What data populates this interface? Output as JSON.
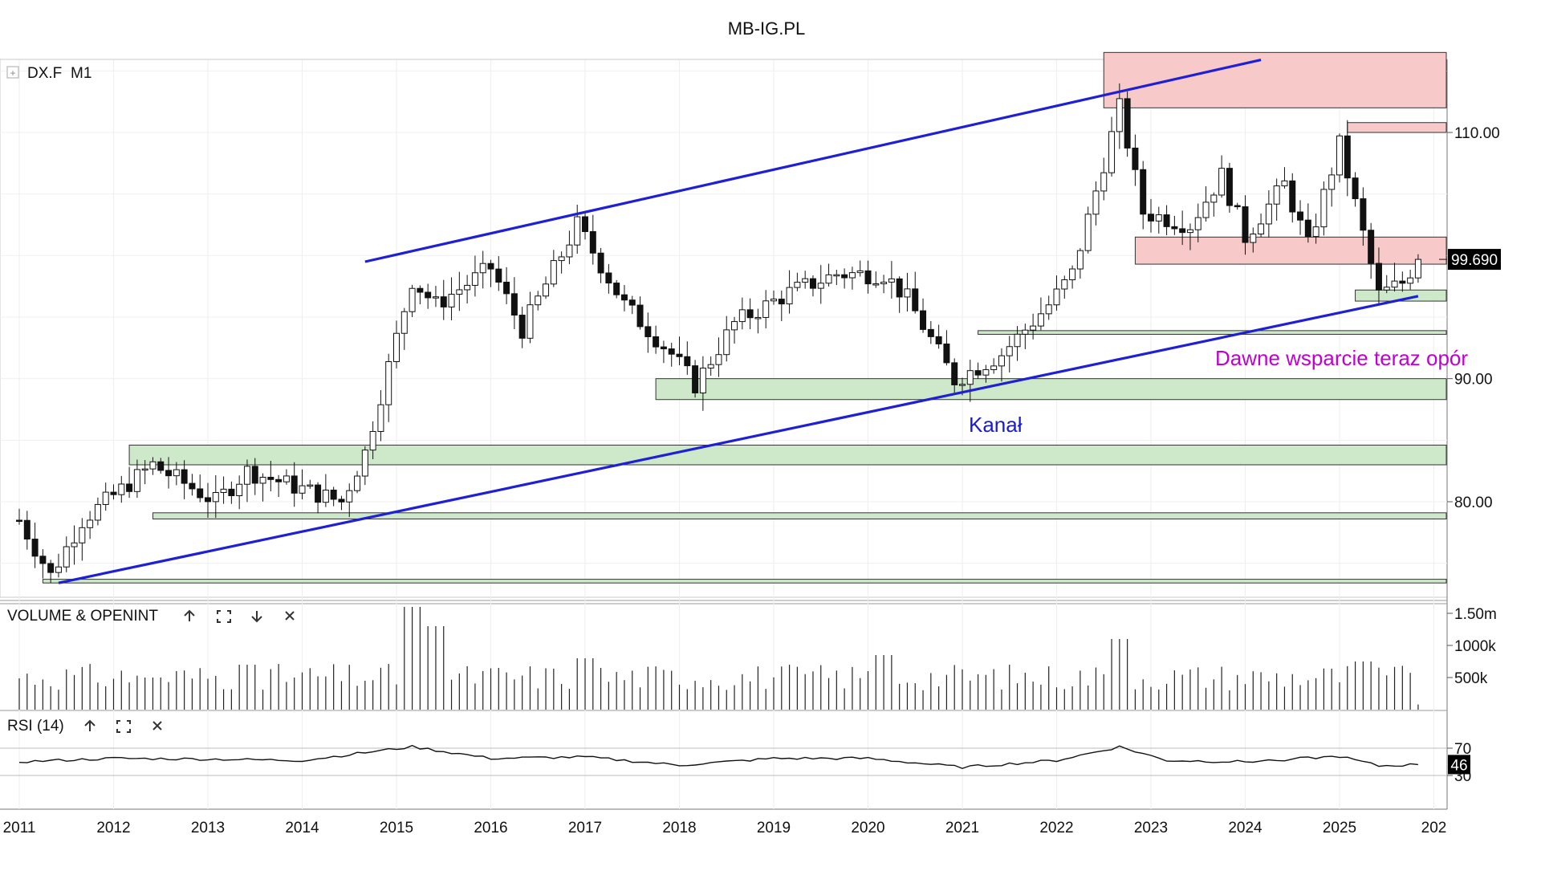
{
  "header": {
    "title": "MB-IG.PL"
  },
  "symbol": {
    "label": "DX.F",
    "timeframe": "M1",
    "expand_glyph": "+"
  },
  "price_axis": {
    "ticks": [
      80,
      90,
      110
    ],
    "tick_labels": [
      "80.00",
      "90.00",
      "110.00"
    ],
    "ylim": [
      73.2,
      119.5
    ]
  },
  "last_price": {
    "value": 99.69,
    "label": "99.690"
  },
  "annotations": {
    "channel_label": "Kanał",
    "old_support_label": "Dawne wsparcie teraz opór"
  },
  "colors": {
    "channel": "#1f1fd6",
    "resistance_fill": "#f7c9c9",
    "support_fill": "#cde9c9",
    "annotation_magenta": "#c000d0",
    "annotation_blue": "#1a1ad0"
  },
  "volume_panel": {
    "title": "VOLUME & OPENINT",
    "tick_labels": [
      "1.50m",
      "1000k",
      "500k"
    ],
    "tick_values": [
      1500000,
      1000000,
      500000
    ],
    "icons": [
      "arrow-up-icon",
      "maximize-icon",
      "arrow-down-icon",
      "close-icon"
    ]
  },
  "rsi_panel": {
    "title": "RSI (14)",
    "tick_labels": [
      "70",
      "30"
    ],
    "tick_values": [
      70,
      30
    ],
    "current_value": "46",
    "icons": [
      "arrow-up-icon",
      "maximize-icon",
      "close-icon"
    ]
  },
  "time_axis": {
    "labels": [
      "2011",
      "2012",
      "2013",
      "2014",
      "2015",
      "2016",
      "2017",
      "2018",
      "2019",
      "2020",
      "2021",
      "2022",
      "2023",
      "2024",
      "2025",
      "202"
    ]
  },
  "chart_data": {
    "type": "candlestick",
    "instrument": "DX.F",
    "timeframe": "M1",
    "x_range": [
      "2011-01",
      "2025-11"
    ],
    "close_path": [
      [
        "2011-01",
        78.5
      ],
      [
        "2011-05",
        74.0
      ],
      [
        "2011-09",
        78.5
      ],
      [
        "2012-06",
        83.0
      ],
      [
        "2013-02",
        80.0
      ],
      [
        "2013-06",
        82.5
      ],
      [
        "2014-06",
        80.0
      ],
      [
        "2014-09",
        84.0
      ],
      [
        "2015-03",
        98.0
      ],
      [
        "2015-06",
        96.0
      ],
      [
        "2016-01",
        99.0
      ],
      [
        "2016-05",
        94.0
      ],
      [
        "2016-12",
        102.5
      ],
      [
        "2017-06",
        96.0
      ],
      [
        "2017-12",
        92.0
      ],
      [
        "2018-03",
        89.5
      ],
      [
        "2018-08",
        94.5
      ],
      [
        "2019-03",
        97.0
      ],
      [
        "2019-09",
        98.5
      ],
      [
        "2020-03",
        98.5
      ],
      [
        "2020-06",
        96.5
      ],
      [
        "2020-12",
        89.9
      ],
      [
        "2021-06",
        92.0
      ],
      [
        "2021-12",
        96.0
      ],
      [
        "2022-03",
        98.5
      ],
      [
        "2022-09",
        112.0
      ],
      [
        "2022-12",
        103.5
      ],
      [
        "2023-06",
        102.5
      ],
      [
        "2023-10",
        106.5
      ],
      [
        "2024-01",
        101.5
      ],
      [
        "2024-06",
        105.8
      ],
      [
        "2024-09",
        100.8
      ],
      [
        "2025-01",
        109.0
      ],
      [
        "2025-03",
        104.2
      ],
      [
        "2025-06",
        96.8
      ],
      [
        "2025-09",
        97.8
      ],
      [
        "2025-11",
        99.69
      ]
    ],
    "zones": [
      {
        "kind": "resistance",
        "from": "2022-07",
        "y": [
          112,
          116.5
        ]
      },
      {
        "kind": "resistance",
        "from": "2025-02",
        "y": [
          110,
          110.8
        ]
      },
      {
        "kind": "resistance",
        "from": "2022-11",
        "y": [
          99.3,
          101.5
        ]
      },
      {
        "kind": "support",
        "from": "2025-03",
        "y": [
          96.3,
          97.2
        ]
      },
      {
        "kind": "support",
        "from": "2021-03",
        "y": [
          93.6,
          93.9
        ]
      },
      {
        "kind": "support",
        "from": "2017-10",
        "y": [
          88.3,
          90.0
        ]
      },
      {
        "kind": "support",
        "from": "2012-03",
        "y": [
          83.0,
          84.6
        ]
      },
      {
        "kind": "support",
        "from": "2012-06",
        "y": [
          78.6,
          79.1
        ]
      },
      {
        "kind": "support",
        "from": "2011-04",
        "y": [
          73.4,
          73.7
        ]
      }
    ],
    "channel": {
      "upper": [
        [
          "2014-09",
          99.5
        ],
        [
          "2024-03",
          115.9
        ]
      ],
      "lower": [
        [
          "2011-06",
          73.4
        ],
        [
          "2025-11",
          96.7
        ]
      ]
    },
    "volume": [
      [
        "2012-06",
        500000
      ],
      [
        "2013-06",
        700000
      ],
      [
        "2015-03",
        1600000
      ],
      [
        "2015-06",
        1300000
      ],
      [
        "2017-01",
        800000
      ],
      [
        "2020-03",
        850000
      ],
      [
        "2022-09",
        1100000
      ],
      [
        "2025-04",
        750000
      ]
    ],
    "rsi": [
      [
        "2011-01",
        50
      ],
      [
        "2012-01",
        55
      ],
      [
        "2013-01",
        54
      ],
      [
        "2014-01",
        52
      ],
      [
        "2015-03",
        72
      ],
      [
        "2016-01",
        55
      ],
      [
        "2017-01",
        57
      ],
      [
        "2018-01",
        45
      ],
      [
        "2019-01",
        55
      ],
      [
        "2020-01",
        55
      ],
      [
        "2021-01",
        42
      ],
      [
        "2022-01",
        52
      ],
      [
        "2022-09",
        72
      ],
      [
        "2023-03",
        52
      ],
      [
        "2024-01",
        50
      ],
      [
        "2025-01",
        58
      ],
      [
        "2025-06",
        44
      ],
      [
        "2025-11",
        46
      ]
    ]
  }
}
